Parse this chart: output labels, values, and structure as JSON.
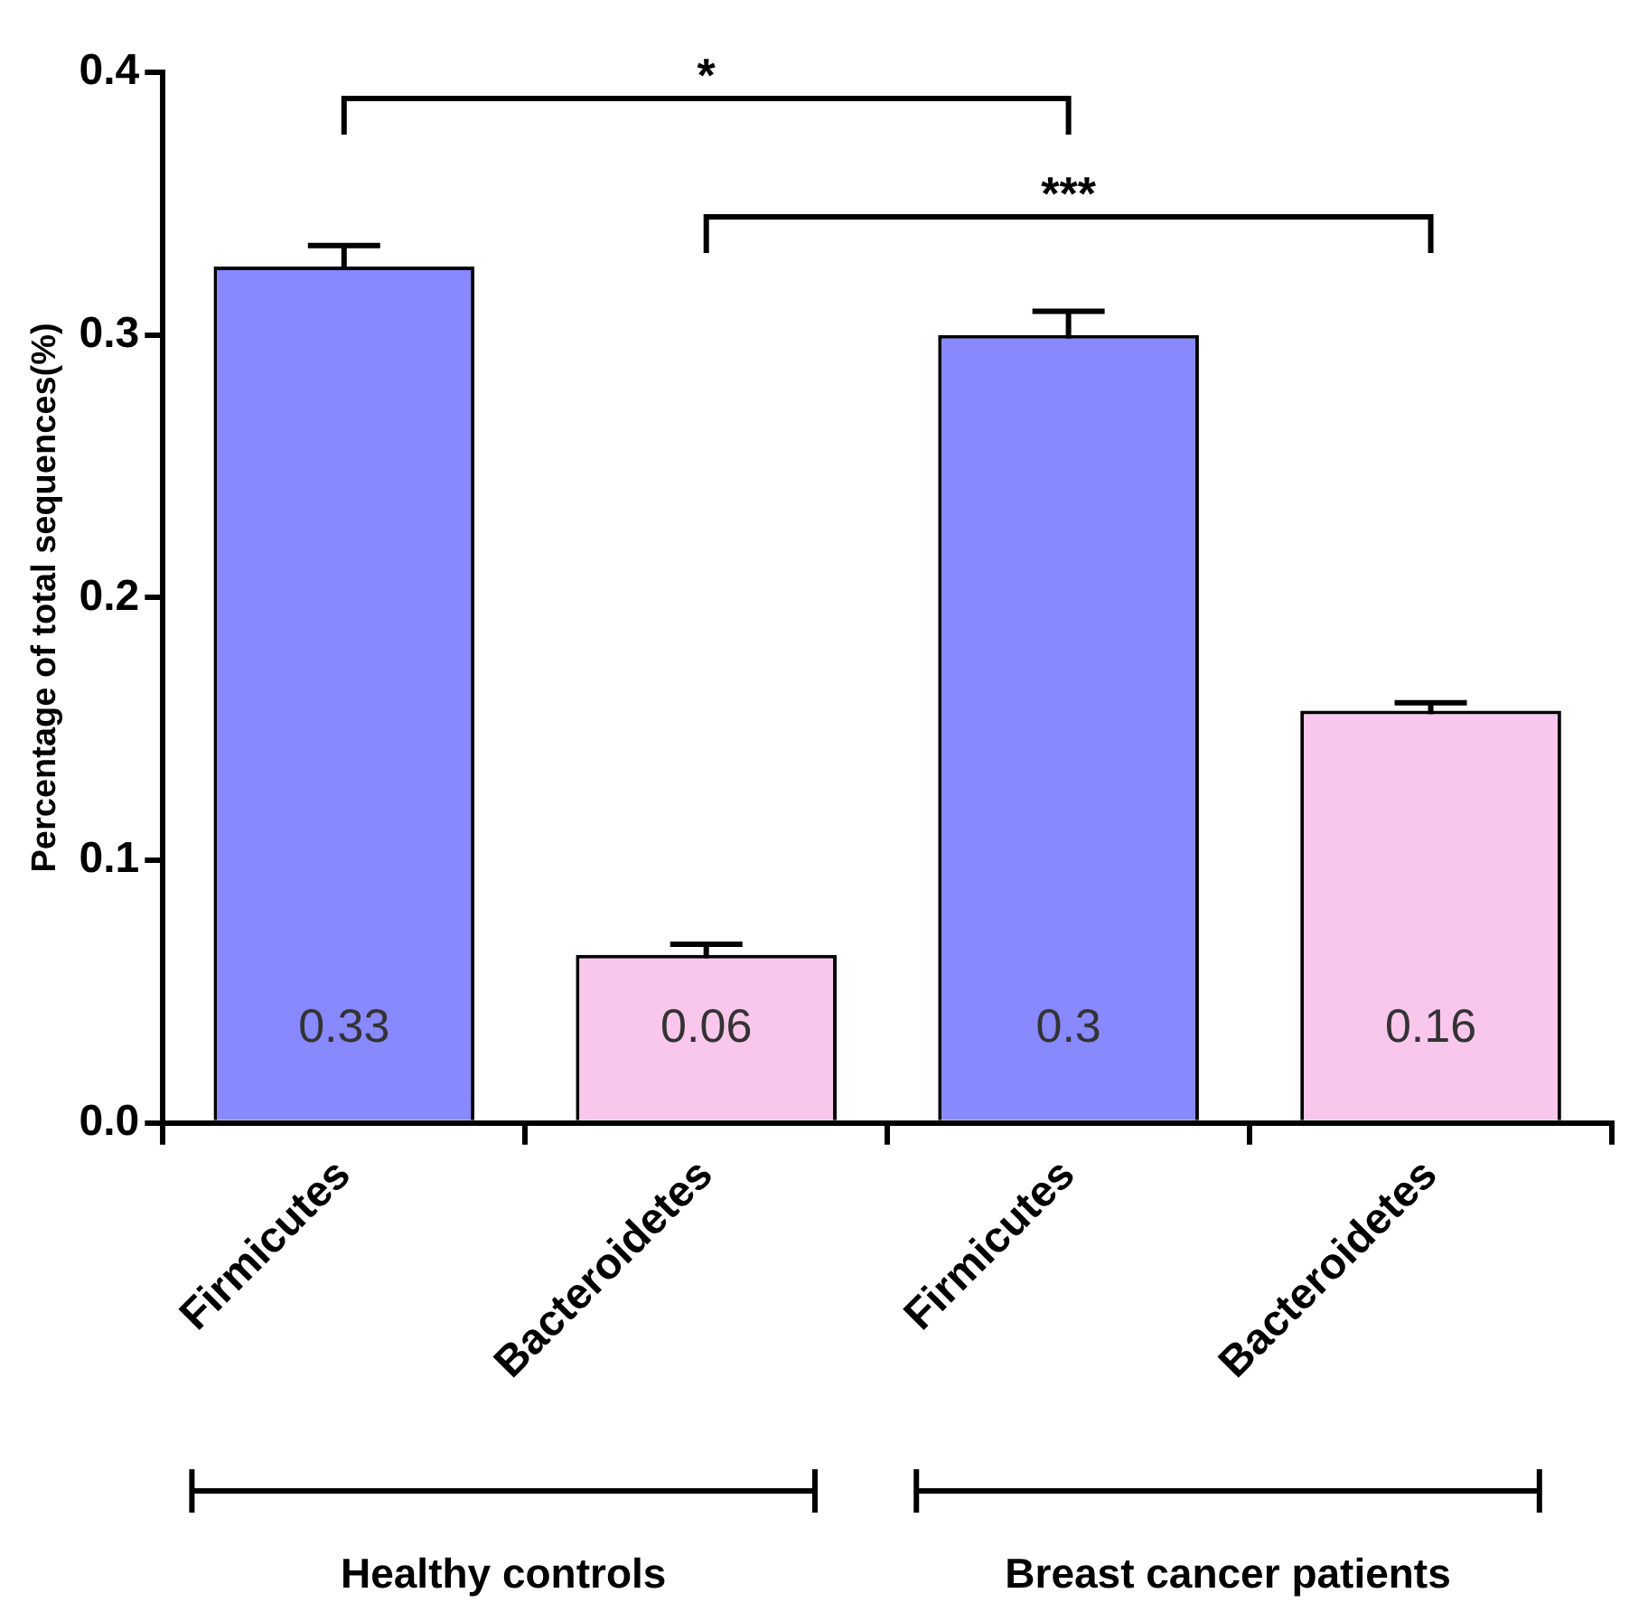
{
  "chart_data": {
    "type": "bar",
    "ylabel": "Percentage of total sequences(%)",
    "categories": [
      "Firmicutes",
      "Bacteroidetes",
      "Firmicutes",
      "Bacteroidetes"
    ],
    "values": [
      0.326,
      0.064,
      0.3,
      0.157
    ],
    "colors": [
      "#8888ff",
      "#f9c6ec",
      "#8888ff",
      "#f9c6ec"
    ],
    "errors": [
      0.008,
      0.004,
      0.009,
      0.003
    ],
    "value_labels": [
      "0.33",
      "0.06",
      "0.3",
      "0.16"
    ],
    "ylim": [
      0,
      0.4
    ],
    "yticks": [
      {
        "value": 0,
        "label": "0.0"
      },
      0.1,
      0.2,
      0.3,
      0.4
    ],
    "grid": false,
    "legend": false,
    "annotations": [
      "*",
      "***",
      "Healthy controls",
      "Breast cancer patients"
    ]
  }
}
